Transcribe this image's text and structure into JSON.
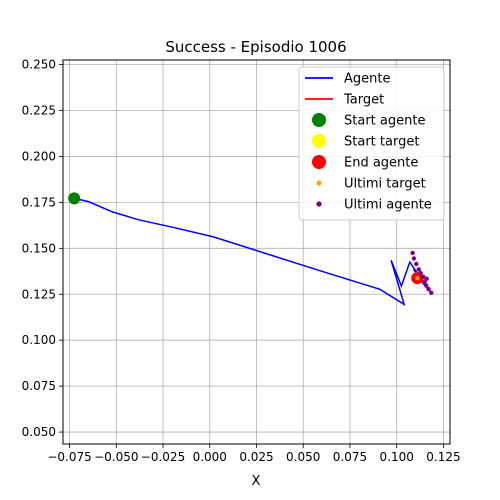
{
  "chart_data": {
    "type": "scatter",
    "title": "Success - Episodio 1006",
    "xlabel": "X",
    "ylabel": "",
    "xlim": [
      -0.0785,
      0.1285
    ],
    "ylim": [
      0.0435,
      0.2525
    ],
    "xticks": [
      "−0.075",
      "−0.050",
      "−0.025",
      "0.000",
      "0.025",
      "0.050",
      "0.075",
      "0.100",
      "0.125"
    ],
    "xtick_values": [
      -0.075,
      -0.05,
      -0.025,
      0.0,
      0.025,
      0.05,
      0.075,
      0.1,
      0.125
    ],
    "yticks": [
      "0.050",
      "0.075",
      "0.100",
      "0.125",
      "0.150",
      "0.175",
      "0.200",
      "0.225",
      "0.250"
    ],
    "ytick_values": [
      0.05,
      0.075,
      0.1,
      0.125,
      0.15,
      0.175,
      0.2,
      0.225,
      0.25
    ],
    "grid": true,
    "legend_position": "top-right",
    "series": [
      {
        "name": "Agente",
        "kind": "line",
        "color": "#0000ff",
        "points": [
          [
            -0.0725,
            0.1772
          ],
          [
            -0.065,
            0.1755
          ],
          [
            -0.052,
            0.1698
          ],
          [
            -0.038,
            0.1655
          ],
          [
            -0.02,
            0.1615
          ],
          [
            0.002,
            0.1562
          ],
          [
            0.03,
            0.1472
          ],
          [
            0.06,
            0.1375
          ],
          [
            0.091,
            0.1277
          ],
          [
            0.104,
            0.1195
          ],
          [
            0.097,
            0.1435
          ],
          [
            0.1025,
            0.1295
          ],
          [
            0.107,
            0.1425
          ],
          [
            0.113,
            0.1335
          ],
          [
            0.109,
            0.1385
          ],
          [
            0.116,
            0.1295
          ],
          [
            0.112,
            0.1335
          ],
          [
            0.117,
            0.1275
          ],
          [
            0.1185,
            0.126
          ]
        ]
      },
      {
        "name": "Target",
        "kind": "line",
        "color": "#ff0000",
        "points": [
          [
            0.111,
            0.1338
          ],
          [
            0.1112,
            0.1338
          ]
        ]
      },
      {
        "name": "Start agente",
        "kind": "point",
        "color": "#008000",
        "points": [
          [
            -0.0725,
            0.1772
          ]
        ]
      },
      {
        "name": "Start target",
        "kind": "point",
        "color": "#ffff00",
        "points": [
          [
            0.111,
            0.1338
          ]
        ]
      },
      {
        "name": "End agente",
        "kind": "point",
        "color": "#ff0000",
        "points": [
          [
            0.111,
            0.1338
          ]
        ]
      },
      {
        "name": "Ultimi target",
        "kind": "small-point",
        "color": "#ffa500",
        "points": [
          [
            0.111,
            0.1338
          ]
        ]
      },
      {
        "name": "Ultimi agente",
        "kind": "small-point",
        "color": "#800080",
        "points": [
          [
            0.1085,
            0.1475
          ],
          [
            0.1092,
            0.1445
          ],
          [
            0.1105,
            0.1415
          ],
          [
            0.1118,
            0.1385
          ],
          [
            0.1128,
            0.1365
          ],
          [
            0.1142,
            0.1345
          ],
          [
            0.115,
            0.132
          ],
          [
            0.1158,
            0.1298
          ],
          [
            0.116,
            0.1335
          ],
          [
            0.117,
            0.1278
          ],
          [
            0.1185,
            0.1258
          ]
        ]
      }
    ]
  }
}
